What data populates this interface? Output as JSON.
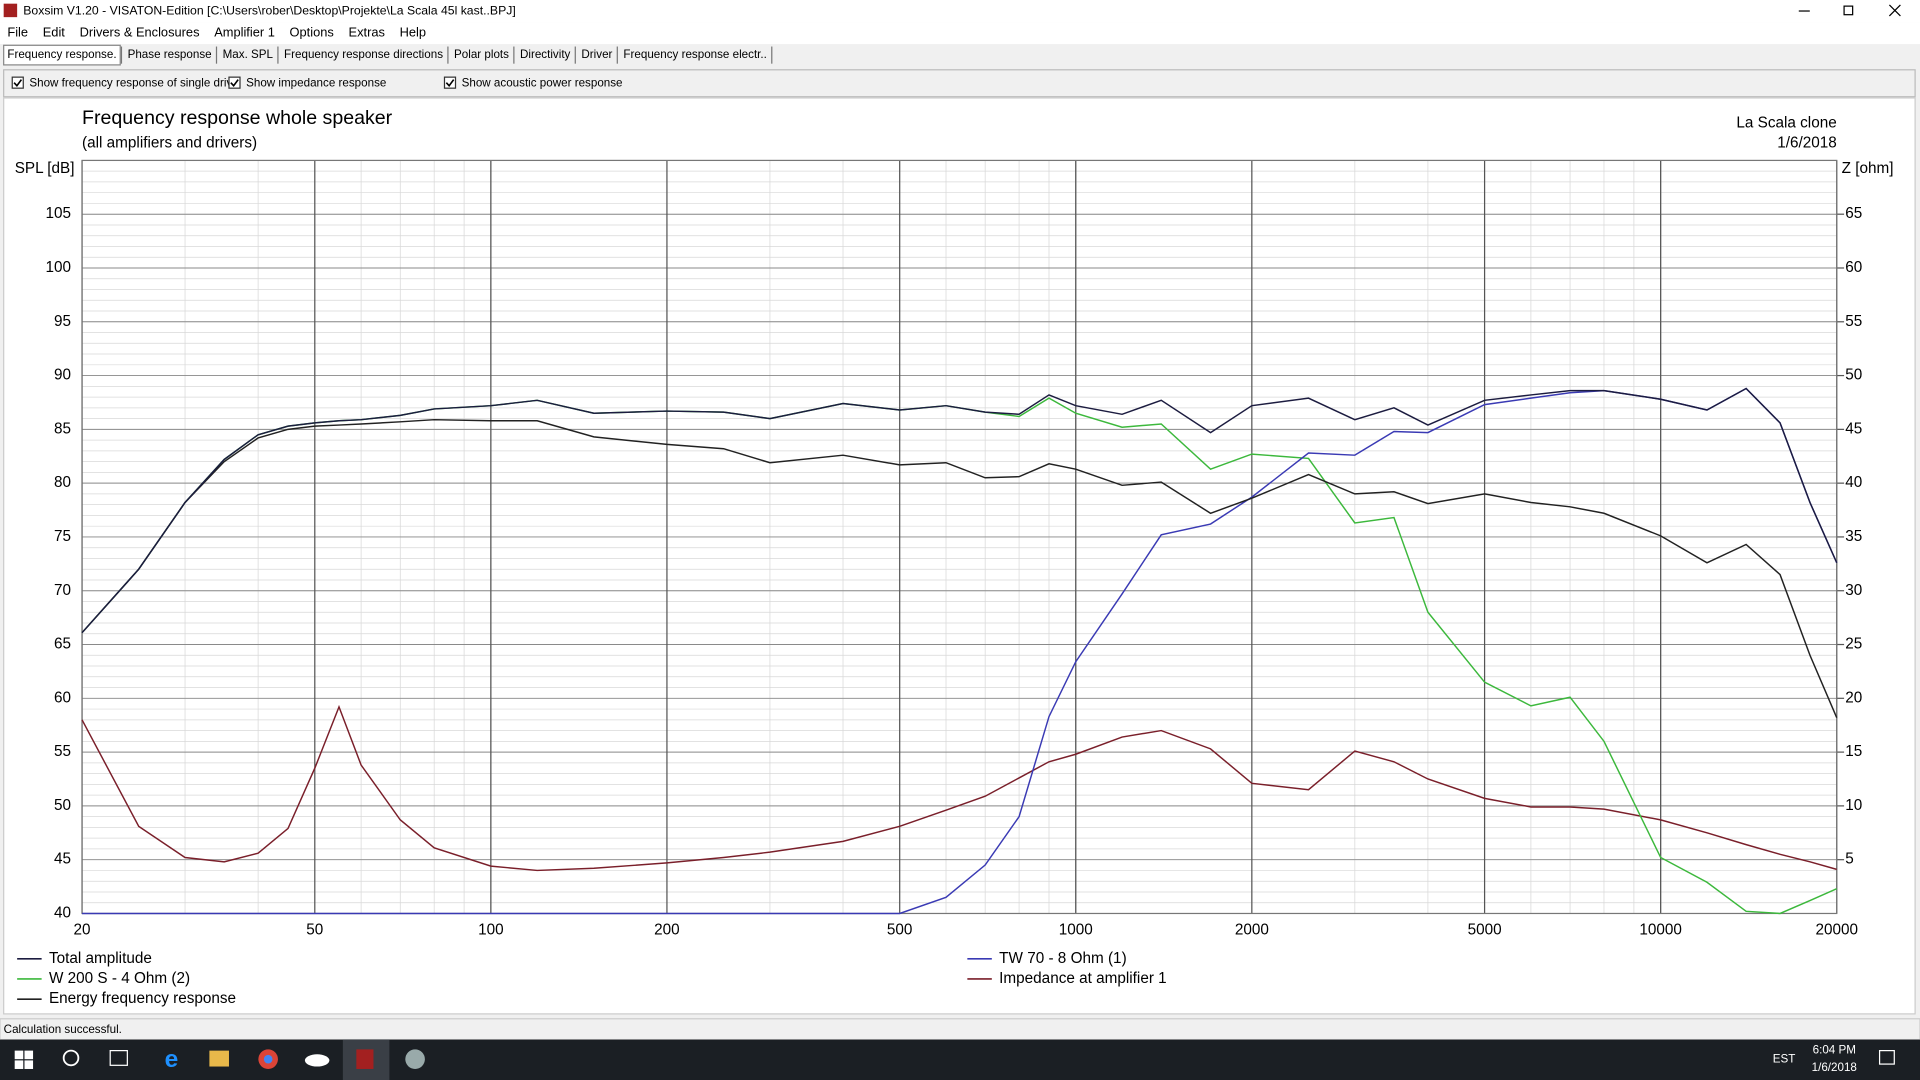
{
  "window": {
    "title": "Boxsim V1.20 - VISATON-Edition [C:\\Users\\rober\\Desktop\\Projekte\\La Scala 45l kast..BPJ]"
  },
  "menu": [
    "File",
    "Edit",
    "Drivers & Enclosures",
    "Amplifier 1",
    "Options",
    "Extras",
    "Help"
  ],
  "tabs": [
    "Frequency response.",
    "Phase response",
    "Max. SPL",
    "Frequency response directions",
    "Polar plots",
    "Directivity",
    "Driver",
    "Frequency response electr.."
  ],
  "checkboxes": [
    {
      "label": "Show frequency response of single drive",
      "checked": true
    },
    {
      "label": "Show impedance response",
      "checked": true
    },
    {
      "label": "Show acoustic power response",
      "checked": true
    }
  ],
  "chart_data": {
    "type": "line",
    "title": "Frequency response whole speaker",
    "subtitle": "(all amplifiers and drivers)",
    "annotations": [
      "La Scala clone",
      "1/6/2018"
    ],
    "ylabel": "SPL [dB]",
    "y2label": "Z [ohm]",
    "xscale": "log",
    "grid": true,
    "xlim": [
      20,
      20000
    ],
    "ylim": [
      40,
      110
    ],
    "y2lim": [
      0,
      70
    ],
    "xticks": [
      20,
      50,
      100,
      200,
      500,
      1000,
      2000,
      5000,
      10000,
      20000
    ],
    "yticks": [
      40,
      45,
      50,
      55,
      60,
      65,
      70,
      75,
      80,
      85,
      90,
      95,
      100,
      105
    ],
    "y2ticks": [
      5,
      10,
      15,
      20,
      25,
      30,
      35,
      40,
      45,
      50,
      55,
      60,
      65
    ],
    "x": [
      20,
      25,
      30,
      35,
      40,
      45,
      50,
      55,
      60,
      70,
      80,
      100,
      120,
      150,
      200,
      250,
      300,
      400,
      500,
      600,
      700,
      800,
      900,
      1000,
      1200,
      1400,
      1700,
      2000,
      2500,
      3000,
      3500,
      4000,
      5000,
      6000,
      7000,
      8000,
      10000,
      12000,
      14000,
      16000,
      18000,
      20000
    ],
    "series": [
      {
        "name": "Total amplitude",
        "color": "#1c1c40",
        "values": [
          66.1,
          72,
          78.2,
          82.2,
          84.5,
          85.3,
          85.6,
          85.8,
          85.9,
          86.3,
          86.9,
          87.2,
          87.7,
          86.5,
          86.7,
          86.6,
          86,
          87.4,
          86.8,
          87.2,
          86.6,
          86.4,
          88.2,
          87.2,
          86.4,
          87.7,
          84.7,
          87.2,
          87.9,
          85.9,
          87,
          85.4,
          87.7,
          88.2,
          88.6,
          88.6,
          87.8,
          86.8,
          88.8,
          85.6,
          78.2,
          72.6
        ]
      },
      {
        "name": "W 200 S - 4 Ohm (2)",
        "color": "#3cb83c",
        "values": [
          66.1,
          72,
          78.2,
          82.2,
          84.5,
          85.3,
          85.6,
          85.8,
          85.9,
          86.3,
          86.9,
          87.2,
          87.7,
          86.5,
          86.7,
          86.6,
          86,
          87.4,
          86.8,
          87.2,
          86.6,
          86.2,
          87.9,
          86.5,
          85.2,
          85.5,
          81.3,
          82.7,
          82.3,
          76.3,
          76.8,
          68,
          61.5,
          59.3,
          60.1,
          56,
          45.2,
          42.9,
          40.2,
          40,
          41.2,
          42.3
        ]
      },
      {
        "name": "Energy frequency response",
        "color": "#222222",
        "values": [
          66.1,
          72,
          78.2,
          82,
          84.2,
          85,
          85.3,
          85.4,
          85.5,
          85.7,
          85.9,
          85.8,
          85.8,
          84.3,
          83.6,
          83.2,
          81.9,
          82.6,
          81.7,
          81.9,
          80.5,
          80.6,
          81.8,
          81.3,
          79.8,
          80.1,
          77.2,
          78.6,
          80.8,
          79,
          79.2,
          78.1,
          79,
          78.2,
          77.8,
          77.2,
          75.1,
          72.6,
          74.3,
          71.5,
          64,
          58.2
        ]
      },
      {
        "name": "TW 70 - 8 Ohm (1)",
        "color": "#3a3ab4",
        "values": [
          40,
          40,
          40,
          40,
          40,
          40,
          40,
          40,
          40,
          40,
          40,
          40,
          40,
          40,
          40,
          40,
          40,
          40,
          40,
          41.5,
          44.5,
          49,
          58.3,
          63.4,
          69.7,
          75.2,
          76.2,
          78.7,
          82.8,
          82.6,
          84.8,
          84.7,
          87.3,
          87.9,
          88.4,
          88.6,
          87.8,
          86.8,
          88.8,
          85.6,
          78.2,
          72.6
        ]
      },
      {
        "name": "Impedance at amplifier 1",
        "color": "#7a1f2a",
        "axis": "y2",
        "values": [
          18,
          8.1,
          5.2,
          4.8,
          5.6,
          7.9,
          13.5,
          19.2,
          13.8,
          8.7,
          6.1,
          4.4,
          4,
          4.2,
          4.7,
          5.2,
          5.7,
          6.7,
          8.1,
          9.6,
          10.9,
          12.6,
          14.1,
          14.8,
          16.4,
          17,
          15.3,
          12.1,
          11.5,
          15.1,
          14.1,
          12.5,
          10.7,
          9.9,
          9.9,
          9.7,
          8.7,
          7.5,
          6.4,
          5.5,
          4.8,
          4.1
        ]
      }
    ]
  },
  "status": "Calculation successful.",
  "taskbar": {
    "time": "6:04 PM",
    "date": "1/6/2018",
    "language": "EST"
  }
}
